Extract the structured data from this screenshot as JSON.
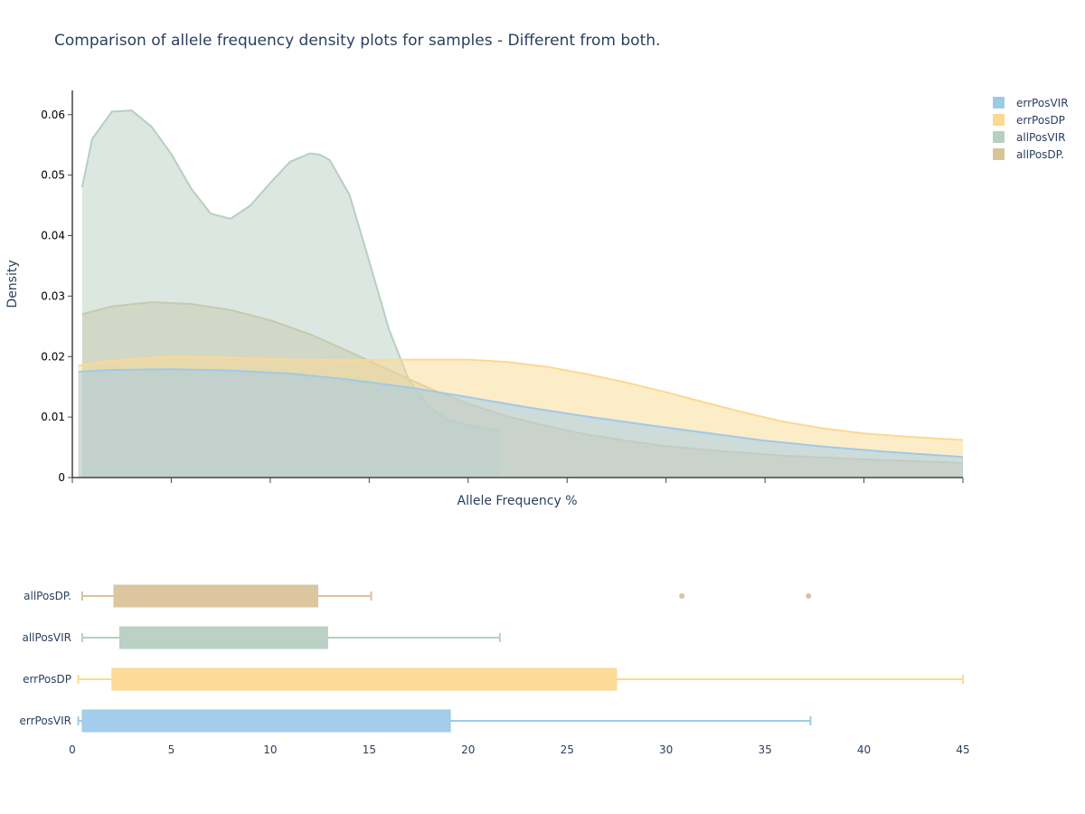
{
  "chart_data": {
    "title": "Comparison of allele frequency density plots for samples - Different from both.",
    "legend": {
      "position": "top-right",
      "entries": [
        "errPosVIR",
        "errPosDP",
        "allPosVIR",
        "allPosDP."
      ]
    },
    "colors": {
      "errPosVIR": "#9ecae9",
      "errPosDP": "#fcd992",
      "allPosVIR": "#b7cfc2",
      "allPosDP.": "#d9c39b",
      "axis": "#444444",
      "text": "#2a3f5f"
    },
    "density": {
      "type": "area",
      "xlabel": "Allele Frequency %",
      "ylabel": "Density",
      "xlim": [
        0,
        45
      ],
      "ylim": [
        0,
        0.064
      ],
      "yticks": [
        0,
        0.01,
        0.02,
        0.03,
        0.04,
        0.05,
        0.06
      ],
      "ytick_labels": [
        "0",
        "0.01",
        "0.02",
        "0.03",
        "0.04",
        "0.05",
        "0.06"
      ],
      "grid": false,
      "series": [
        {
          "name": "allPosDP.",
          "x": [
            0.5,
            2,
            4,
            6,
            8,
            10,
            12,
            14,
            16,
            18,
            20,
            22,
            24,
            26,
            28,
            30,
            33,
            36,
            40,
            45
          ],
          "y": [
            0.027,
            0.0283,
            0.029,
            0.0287,
            0.0277,
            0.026,
            0.0237,
            0.0208,
            0.0178,
            0.0148,
            0.0122,
            0.0101,
            0.0085,
            0.0071,
            0.0061,
            0.0052,
            0.0043,
            0.0036,
            0.003,
            0.0024
          ]
        },
        {
          "name": "allPosVIR",
          "x": [
            0.5,
            1,
            2,
            3,
            4,
            5,
            6,
            7,
            8,
            9,
            10,
            11,
            12,
            12.5,
            13,
            14,
            15,
            16,
            17,
            18,
            19,
            20,
            21,
            21.6
          ],
          "y": [
            0.048,
            0.056,
            0.0605,
            0.0607,
            0.058,
            0.0535,
            0.0478,
            0.0436,
            0.0428,
            0.045,
            0.0487,
            0.0522,
            0.0536,
            0.0534,
            0.0525,
            0.0468,
            0.0358,
            0.0245,
            0.0162,
            0.0118,
            0.0095,
            0.0087,
            0.0081,
            0.0077
          ]
        },
        {
          "name": "errPosDP",
          "x": [
            0.3,
            2,
            5,
            8,
            11,
            14,
            17,
            20,
            22,
            24,
            26,
            28,
            30,
            32,
            34,
            36,
            38,
            40,
            42,
            45
          ],
          "y": [
            0.0185,
            0.0193,
            0.02,
            0.0198,
            0.0195,
            0.0194,
            0.0195,
            0.0195,
            0.0191,
            0.0183,
            0.0171,
            0.0157,
            0.0141,
            0.0124,
            0.0107,
            0.0092,
            0.0081,
            0.0073,
            0.0068,
            0.0062
          ]
        },
        {
          "name": "errPosVIR",
          "x": [
            0.3,
            2,
            5,
            8,
            11,
            14,
            17,
            20,
            23,
            26,
            29,
            32,
            35,
            38,
            41,
            45
          ],
          "y": [
            0.0175,
            0.0178,
            0.0179,
            0.0177,
            0.0172,
            0.0162,
            0.0149,
            0.0133,
            0.0116,
            0.0101,
            0.0087,
            0.0074,
            0.0061,
            0.0051,
            0.0043,
            0.0034
          ]
        }
      ]
    },
    "boxplot": {
      "type": "box",
      "xlim": [
        0,
        45
      ],
      "xticks": [
        0,
        5,
        10,
        15,
        20,
        25,
        30,
        35,
        40,
        45
      ],
      "xtick_labels": [
        "0",
        "5",
        "10",
        "15",
        "20",
        "25",
        "30",
        "35",
        "40",
        "45"
      ],
      "categories": [
        "allPosDP.",
        "allPosVIR",
        "errPosDP",
        "errPosVIR"
      ],
      "boxes": [
        {
          "name": "allPosDP.",
          "min": 0.5,
          "q1": 2.1,
          "q3": 12.4,
          "max": 15.1,
          "outliers": [
            30.8,
            37.2
          ]
        },
        {
          "name": "allPosVIR",
          "min": 0.5,
          "q1": 2.4,
          "q3": 12.9,
          "max": 21.6,
          "outliers": []
        },
        {
          "name": "errPosDP",
          "min": 0.3,
          "q1": 2.0,
          "q3": 27.5,
          "max": 45,
          "outliers": []
        },
        {
          "name": "errPosVIR",
          "min": 0.3,
          "q1": 0.5,
          "q3": 19.1,
          "max": 37.3,
          "outliers": []
        }
      ]
    }
  }
}
